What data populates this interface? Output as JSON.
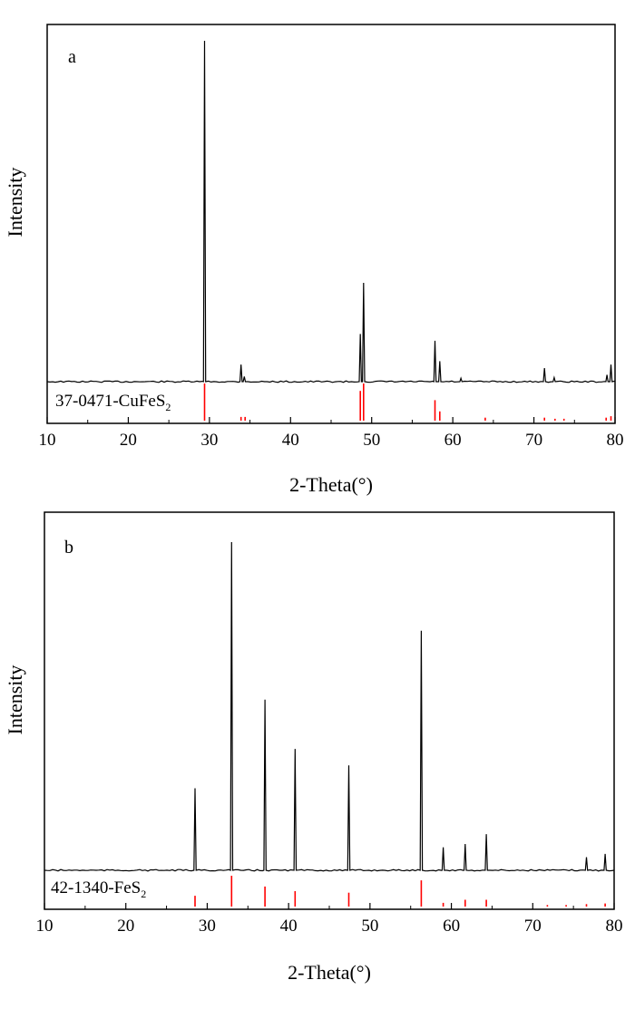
{
  "chart_data": [
    {
      "type": "line",
      "panel_label": "a",
      "xlabel": "2-Theta(°)",
      "ylabel": "Intensity",
      "xlim": [
        10,
        80
      ],
      "x_ticks": [
        10,
        20,
        30,
        40,
        50,
        60,
        70,
        80
      ],
      "reference_label": {
        "prefix": "37-0471-CuFe",
        "element": "S",
        "subscript": "2"
      },
      "pattern_peaks": [
        {
          "x": 29.4,
          "y": 100
        },
        {
          "x": 33.9,
          "y": 5
        },
        {
          "x": 34.3,
          "y": 1.5
        },
        {
          "x": 48.6,
          "y": 14
        },
        {
          "x": 49.0,
          "y": 29
        },
        {
          "x": 57.8,
          "y": 12
        },
        {
          "x": 58.4,
          "y": 6
        },
        {
          "x": 61.0,
          "y": 1
        },
        {
          "x": 71.3,
          "y": 4
        },
        {
          "x": 72.5,
          "y": 1.2
        },
        {
          "x": 79.0,
          "y": 2
        },
        {
          "x": 79.5,
          "y": 5
        }
      ],
      "reference_lines": [
        {
          "x": 29.4,
          "h": 100
        },
        {
          "x": 33.9,
          "h": 10
        },
        {
          "x": 34.4,
          "h": 10
        },
        {
          "x": 48.6,
          "h": 80
        },
        {
          "x": 49.0,
          "h": 100
        },
        {
          "x": 57.8,
          "h": 55
        },
        {
          "x": 58.4,
          "h": 25
        },
        {
          "x": 64.0,
          "h": 8
        },
        {
          "x": 71.3,
          "h": 8
        },
        {
          "x": 72.6,
          "h": 5
        },
        {
          "x": 73.7,
          "h": 5
        },
        {
          "x": 78.9,
          "h": 8
        },
        {
          "x": 79.5,
          "h": 12
        }
      ]
    },
    {
      "type": "line",
      "panel_label": "b",
      "xlabel": "2-Theta(°)",
      "ylabel": "Intensity",
      "xlim": [
        10,
        80
      ],
      "x_ticks": [
        10,
        20,
        30,
        40,
        50,
        60,
        70,
        80
      ],
      "reference_label": {
        "prefix": "42-1340-Fe",
        "element": "S",
        "subscript": "2"
      },
      "pattern_peaks": [
        {
          "x": 28.5,
          "y": 25
        },
        {
          "x": 33.0,
          "y": 100
        },
        {
          "x": 37.1,
          "y": 52
        },
        {
          "x": 40.8,
          "y": 37
        },
        {
          "x": 47.4,
          "y": 32
        },
        {
          "x": 56.3,
          "y": 73
        },
        {
          "x": 59.0,
          "y": 7
        },
        {
          "x": 61.7,
          "y": 8
        },
        {
          "x": 64.3,
          "y": 11
        },
        {
          "x": 76.6,
          "y": 4
        },
        {
          "x": 78.9,
          "y": 5
        }
      ],
      "reference_lines": [
        {
          "x": 28.5,
          "h": 35
        },
        {
          "x": 33.0,
          "h": 100
        },
        {
          "x": 37.1,
          "h": 65
        },
        {
          "x": 40.8,
          "h": 50
        },
        {
          "x": 47.4,
          "h": 45
        },
        {
          "x": 56.3,
          "h": 85
        },
        {
          "x": 59.0,
          "h": 12
        },
        {
          "x": 61.7,
          "h": 22
        },
        {
          "x": 64.3,
          "h": 22
        },
        {
          "x": 71.8,
          "h": 5
        },
        {
          "x": 74.1,
          "h": 5
        },
        {
          "x": 76.6,
          "h": 8
        },
        {
          "x": 78.9,
          "h": 10
        }
      ]
    }
  ]
}
